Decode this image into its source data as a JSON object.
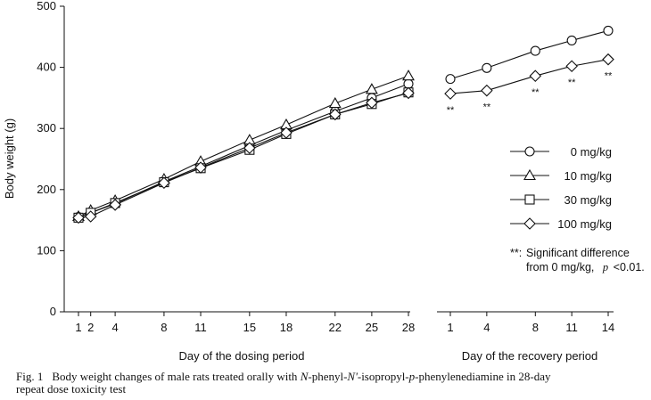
{
  "chart_data": {
    "type": "line",
    "ylabel": "Body weight (g)",
    "ylim": [
      0,
      500
    ],
    "yticks": [
      0,
      100,
      200,
      300,
      400,
      500
    ],
    "dosing": {
      "xlabel": "Day of the dosing period",
      "x": [
        1,
        2,
        4,
        8,
        11,
        15,
        18,
        22,
        25,
        28
      ],
      "xtick_labels": [
        "1",
        "2",
        "4",
        "8",
        "11",
        "15",
        "18",
        "22",
        "25",
        "28"
      ]
    },
    "recovery": {
      "xlabel": "Day of the recovery period",
      "x": [
        1,
        4,
        8,
        11,
        14
      ],
      "xtick_labels": [
        "1",
        "4",
        "8",
        "11",
        "14"
      ]
    },
    "series": [
      {
        "name": "0 mg/kg",
        "marker": "circle",
        "dosing": [
          155,
          162,
          177,
          213,
          238,
          272,
          297,
          328,
          350,
          373
        ],
        "recovery": [
          381,
          399,
          427,
          444,
          460
        ]
      },
      {
        "name": "10 mg/kg",
        "marker": "triangle",
        "dosing": [
          156,
          166,
          182,
          217,
          246,
          281,
          306,
          341,
          364,
          386
        ],
        "recovery": null
      },
      {
        "name": "30 mg/kg",
        "marker": "square",
        "dosing": [
          154,
          162,
          178,
          212,
          235,
          265,
          291,
          323,
          340,
          359
        ],
        "recovery": null
      },
      {
        "name": "100 mg/kg",
        "marker": "diamond",
        "dosing": [
          154,
          156,
          175,
          211,
          236,
          268,
          293,
          323,
          342,
          358
        ],
        "recovery": [
          357,
          362,
          386,
          402,
          413
        ]
      }
    ],
    "significance": {
      "marker": "**",
      "recovery_days": [
        1,
        4,
        8,
        11,
        14
      ],
      "note_marker": "**:",
      "note_line1": "Significant difference",
      "note_line2_prefix": "from 0 mg/kg,",
      "note_p": "p",
      "note_value": "<0.01."
    }
  },
  "caption": {
    "fig": "Fig. 1",
    "t1": "Body weight changes of male rats treated orally with ",
    "i1": "N",
    "t2": "-phenyl-",
    "i2": "N'",
    "t3": "-isopropyl-",
    "i3": "p",
    "t4": "-phenylenediamine in 28-day",
    "line2": "repeat dose toxicity test"
  }
}
